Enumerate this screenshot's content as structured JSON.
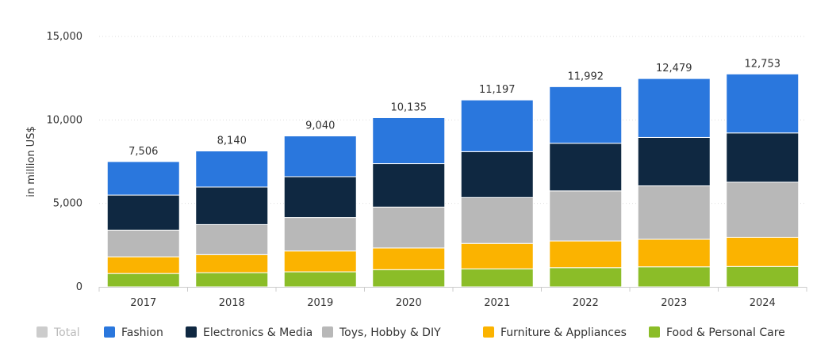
{
  "chart_data": {
    "type": "bar",
    "stacked": true,
    "categories": [
      "2017",
      "2018",
      "2019",
      "2020",
      "2021",
      "2022",
      "2023",
      "2024"
    ],
    "ylabel": "in million US$",
    "ylim": [
      0,
      15000
    ],
    "yticks": [
      0,
      5000,
      10000,
      15000
    ],
    "ytick_labels": [
      "0",
      "5,000",
      "10,000",
      "15,000"
    ],
    "grid": true,
    "legend_position": "bottom",
    "totals": [
      7506,
      8140,
      9040,
      10135,
      11197,
      11992,
      12479,
      12753
    ],
    "total_labels": [
      "7,506",
      "8,140",
      "9,040",
      "10,135",
      "11,197",
      "11,992",
      "12,479",
      "12,753"
    ],
    "series": [
      {
        "name": "Food & Personal Care",
        "color": "#8bbd28",
        "values": [
          800,
          850,
          900,
          1030,
          1080,
          1150,
          1200,
          1220
        ]
      },
      {
        "name": "Furniture & Appliances",
        "color": "#fbb300",
        "values": [
          1000,
          1080,
          1250,
          1300,
          1520,
          1600,
          1650,
          1750
        ]
      },
      {
        "name": "Toys, Hobby & DIY",
        "color": "#b8b8b8",
        "values": [
          1600,
          1800,
          2000,
          2450,
          2750,
          3000,
          3200,
          3300
        ]
      },
      {
        "name": "Electronics & Media",
        "color": "#0f2841",
        "values": [
          2100,
          2250,
          2450,
          2600,
          2750,
          2850,
          2900,
          2950
        ]
      },
      {
        "name": "Fashion",
        "color": "#2a77dd",
        "values": [
          2006,
          2160,
          2440,
          2755,
          3097,
          3392,
          3529,
          3533
        ]
      }
    ],
    "legend": [
      {
        "name": "Total",
        "color": "#cccccc",
        "muted": true
      },
      {
        "name": "Fashion",
        "color": "#2a77dd"
      },
      {
        "name": "Electronics & Media",
        "color": "#0f2841"
      },
      {
        "name": "Toys, Hobby & DIY",
        "color": "#b8b8b8"
      },
      {
        "name": "Furniture & Appliances",
        "color": "#fbb300"
      },
      {
        "name": "Food & Personal Care",
        "color": "#8bbd28"
      }
    ]
  }
}
